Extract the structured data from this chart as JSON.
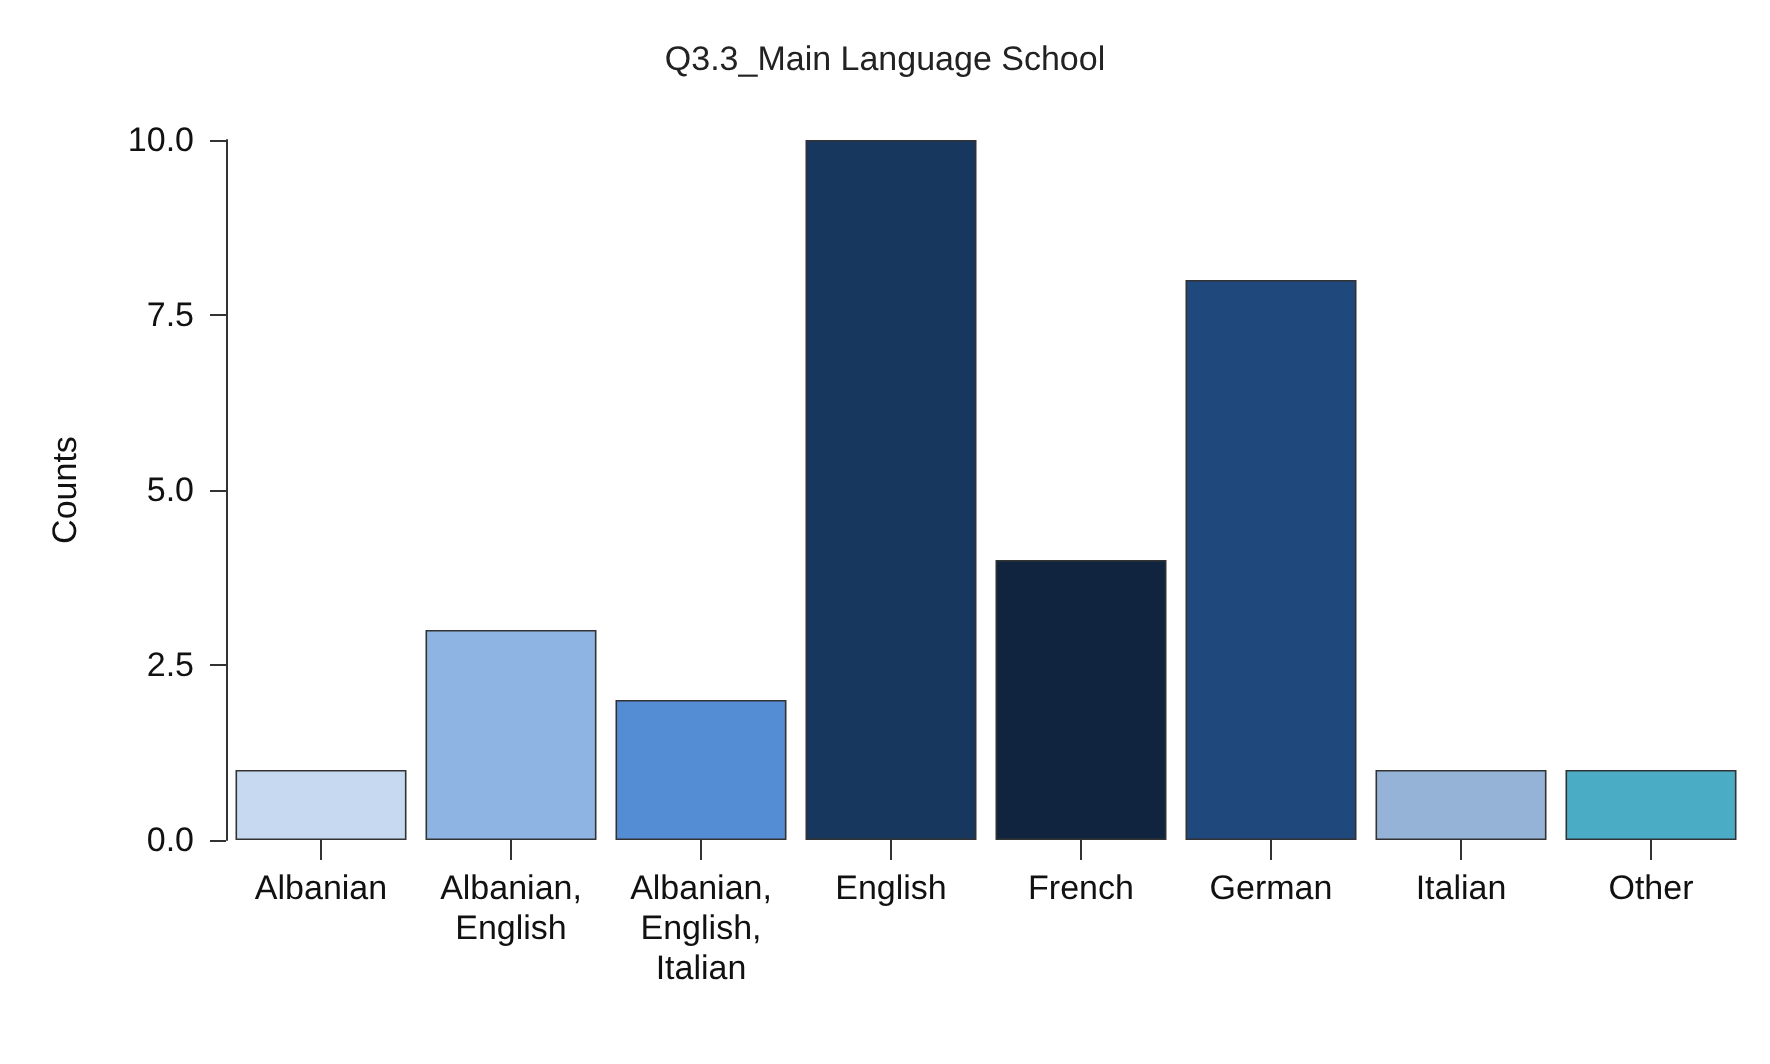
{
  "chart_data": {
    "type": "bar",
    "title": "Q3.3_Main Language School",
    "ylabel": "Counts",
    "categories": [
      "Albanian",
      "Albanian, English",
      "Albanian, English, Italian",
      "English",
      "French",
      "German",
      "Italian",
      "Other"
    ],
    "values": [
      1,
      3,
      2,
      10,
      4,
      8,
      1,
      1
    ],
    "colors": [
      "#c6d9f1",
      "#8db4e2",
      "#548dd4",
      "#17375e",
      "#10243f",
      "#1f497d",
      "#95b3d7",
      "#4bacc6"
    ],
    "ylim": [
      0,
      10
    ],
    "yticks": [
      {
        "value": 0,
        "label": "0.0"
      },
      {
        "value": 2.5,
        "label": "2.5"
      },
      {
        "value": 5,
        "label": "5.0"
      },
      {
        "value": 7.5,
        "label": "7.5"
      },
      {
        "value": 10,
        "label": "10.0"
      }
    ],
    "grid": false
  }
}
